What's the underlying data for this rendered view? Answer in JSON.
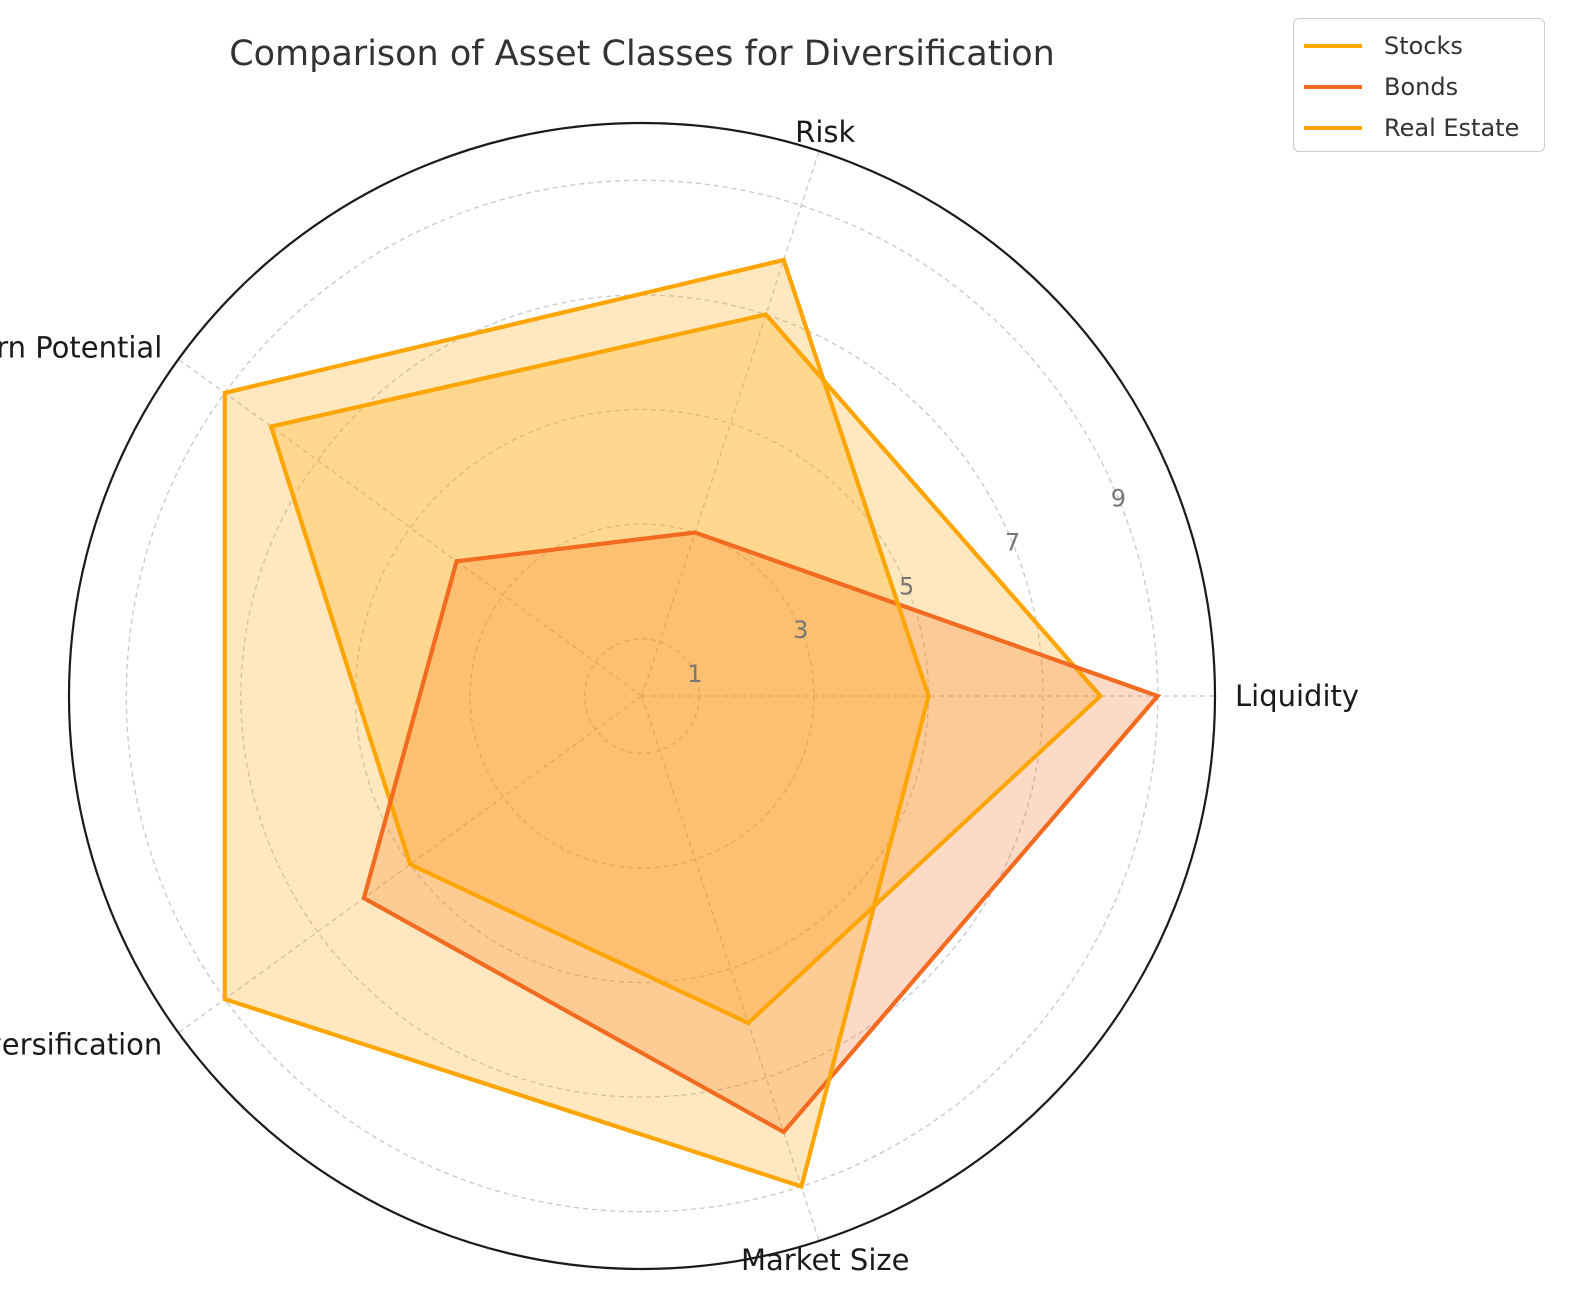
{
  "chart_data": {
    "type": "radar",
    "title": "Comparison of Asset Classes for Diversification",
    "axes": [
      "Liquidity",
      "Risk",
      "Return Potential",
      "Diversification",
      "Market Size"
    ],
    "radial_ticks": [
      1,
      3,
      5,
      7,
      9
    ],
    "rmax": 10,
    "grid": true,
    "legend_position": "top-right",
    "series": [
      {
        "name": "Stocks",
        "values": [
          8,
          7,
          8,
          5,
          6
        ],
        "color": "#FFA500",
        "fill_opacity": 0.25
      },
      {
        "name": "Bonds",
        "values": [
          9,
          3,
          4,
          6,
          8
        ],
        "color": "#F26B21",
        "fill_opacity": 0.25
      },
      {
        "name": "Real Estate",
        "values": [
          5,
          8,
          9,
          9,
          9
        ],
        "color": "#FFA500",
        "fill_opacity": 0.25
      }
    ]
  }
}
